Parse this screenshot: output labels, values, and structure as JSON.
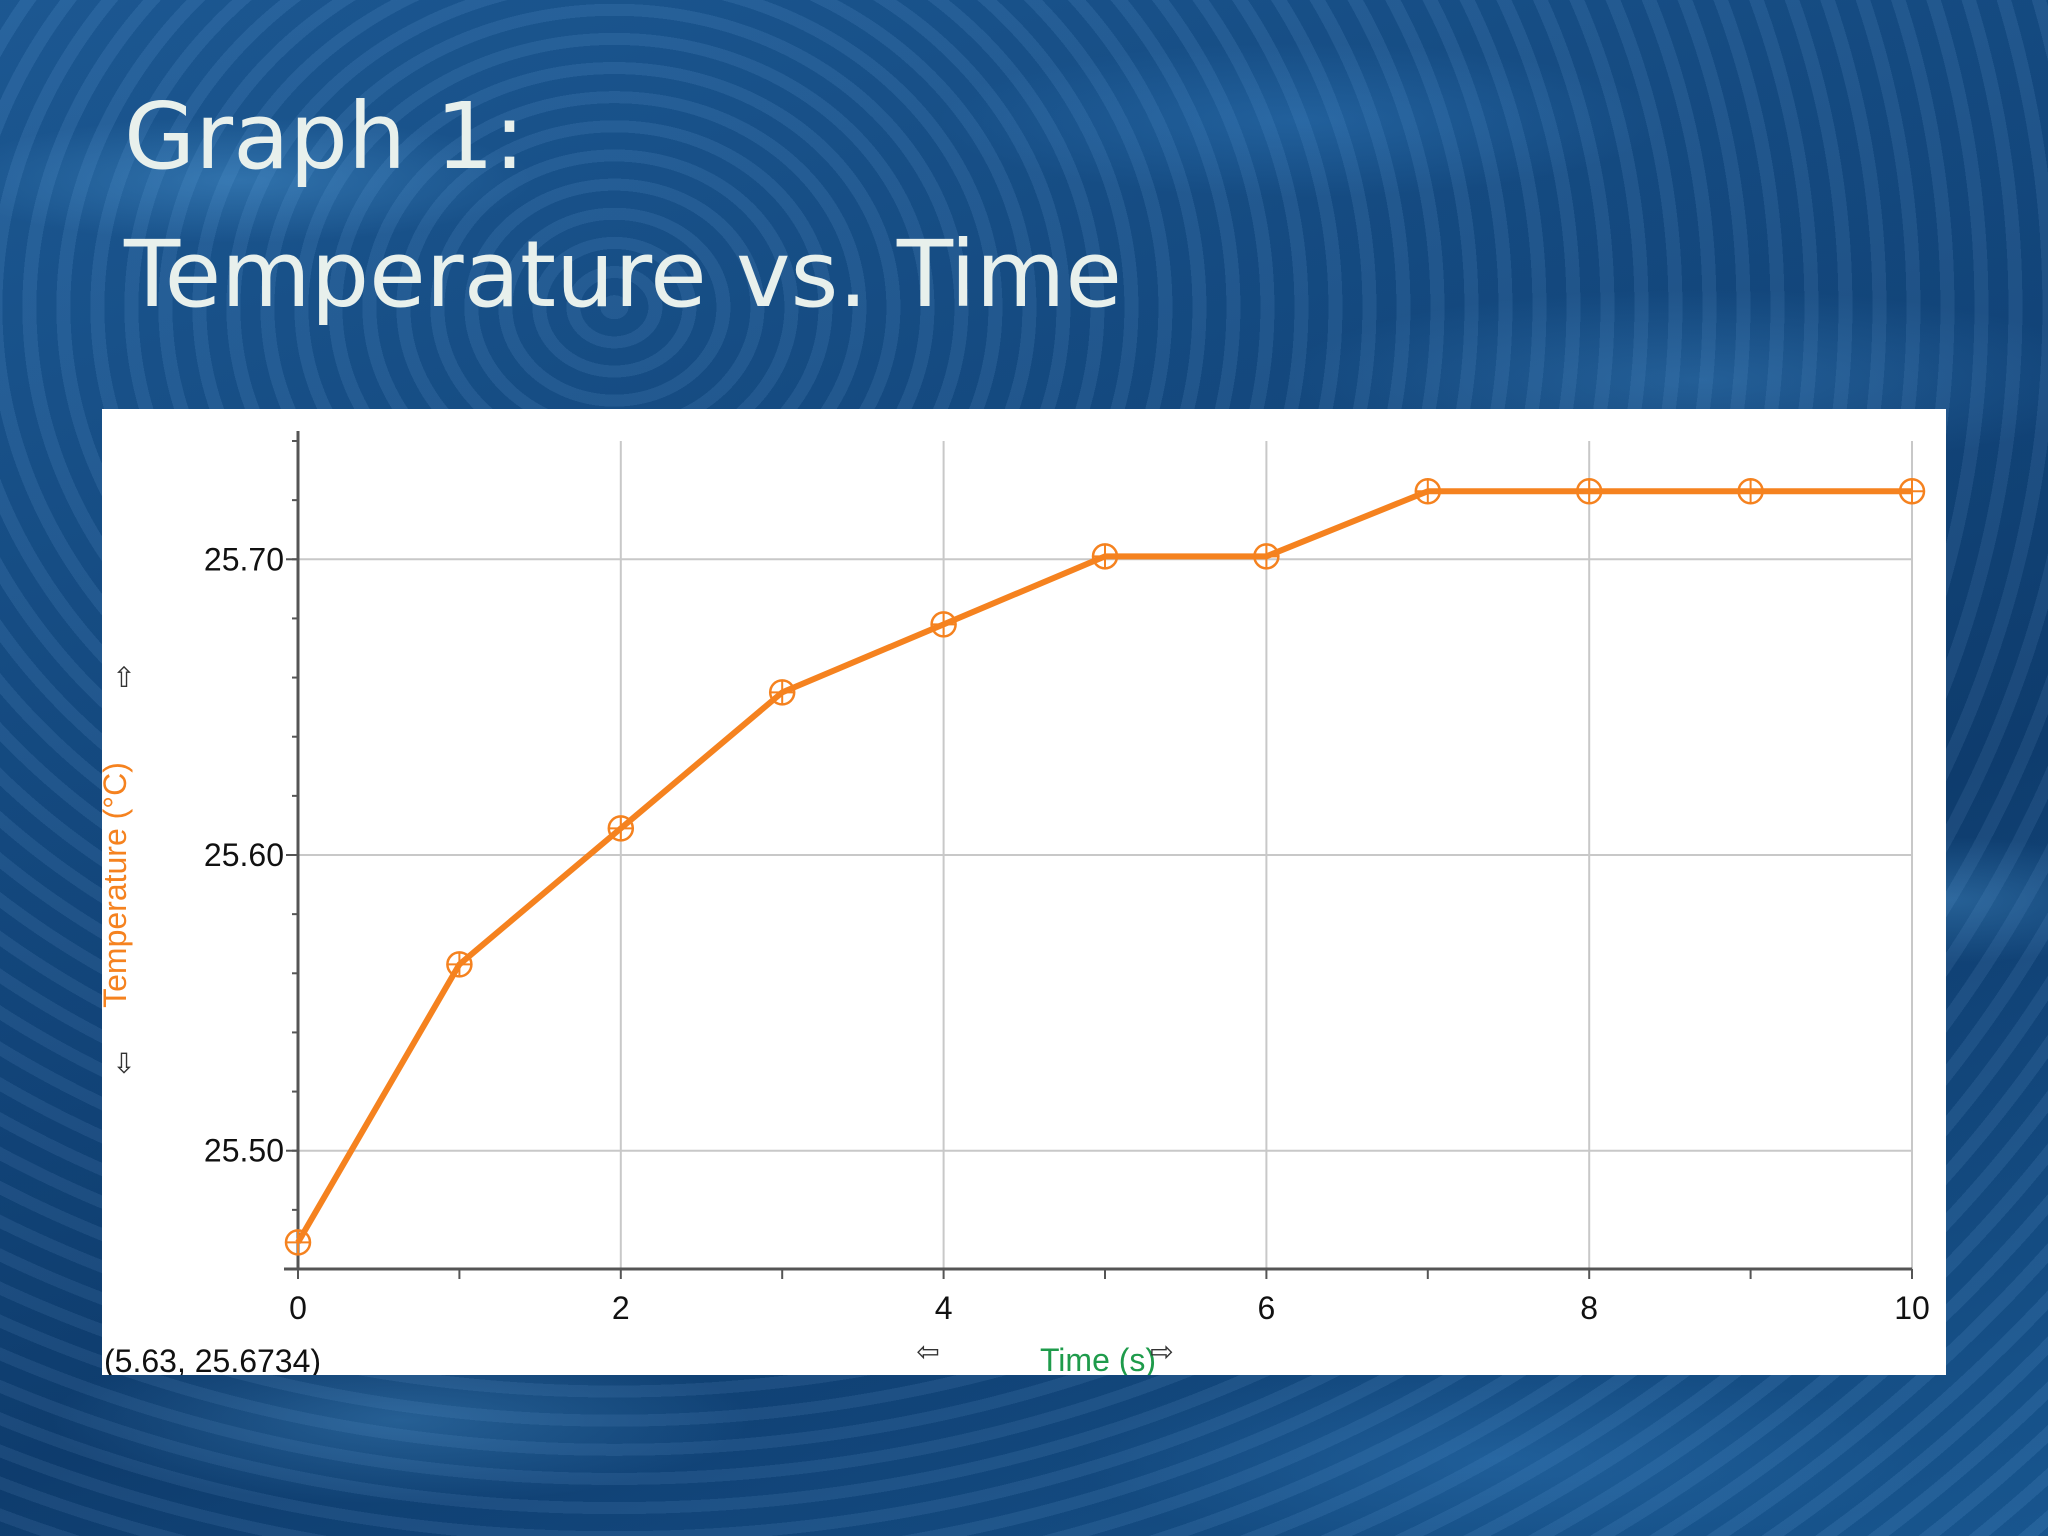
{
  "slide": {
    "title_line1": "Graph 1:",
    "title_line2": "Temperature vs. Time"
  },
  "chart_data": {
    "type": "line",
    "title": "",
    "xlabel": "Time (s)",
    "ylabel": "Temperature (°C)",
    "xlim": [
      0,
      10
    ],
    "ylim": [
      25.46,
      25.74
    ],
    "x_ticks": [
      "0",
      "2",
      "4",
      "6",
      "8",
      "10"
    ],
    "y_ticks": [
      "25.50",
      "25.60",
      "25.70"
    ],
    "grid": true,
    "legend": "none",
    "series": [
      {
        "name": "",
        "color": "#f5821f",
        "marker": "circle-crosshair",
        "x": [
          0,
          1,
          2,
          3,
          4,
          5,
          6,
          7,
          8,
          9,
          10
        ],
        "y": [
          25.469,
          25.563,
          25.609,
          25.655,
          25.678,
          25.701,
          25.701,
          25.723,
          25.723,
          25.723,
          25.723
        ]
      }
    ],
    "cursor_readout": "(5.63, 25.6734)",
    "colors": {
      "ylabel": "#f5821f",
      "xlabel": "#1e9b4b",
      "grid": "#c8c8c8",
      "axis": "#555555"
    },
    "icons": {
      "y_up": "up-arrow-icon",
      "y_down": "down-arrow-icon",
      "x_left": "left-arrow-icon",
      "x_right": "right-arrow-icon"
    }
  }
}
